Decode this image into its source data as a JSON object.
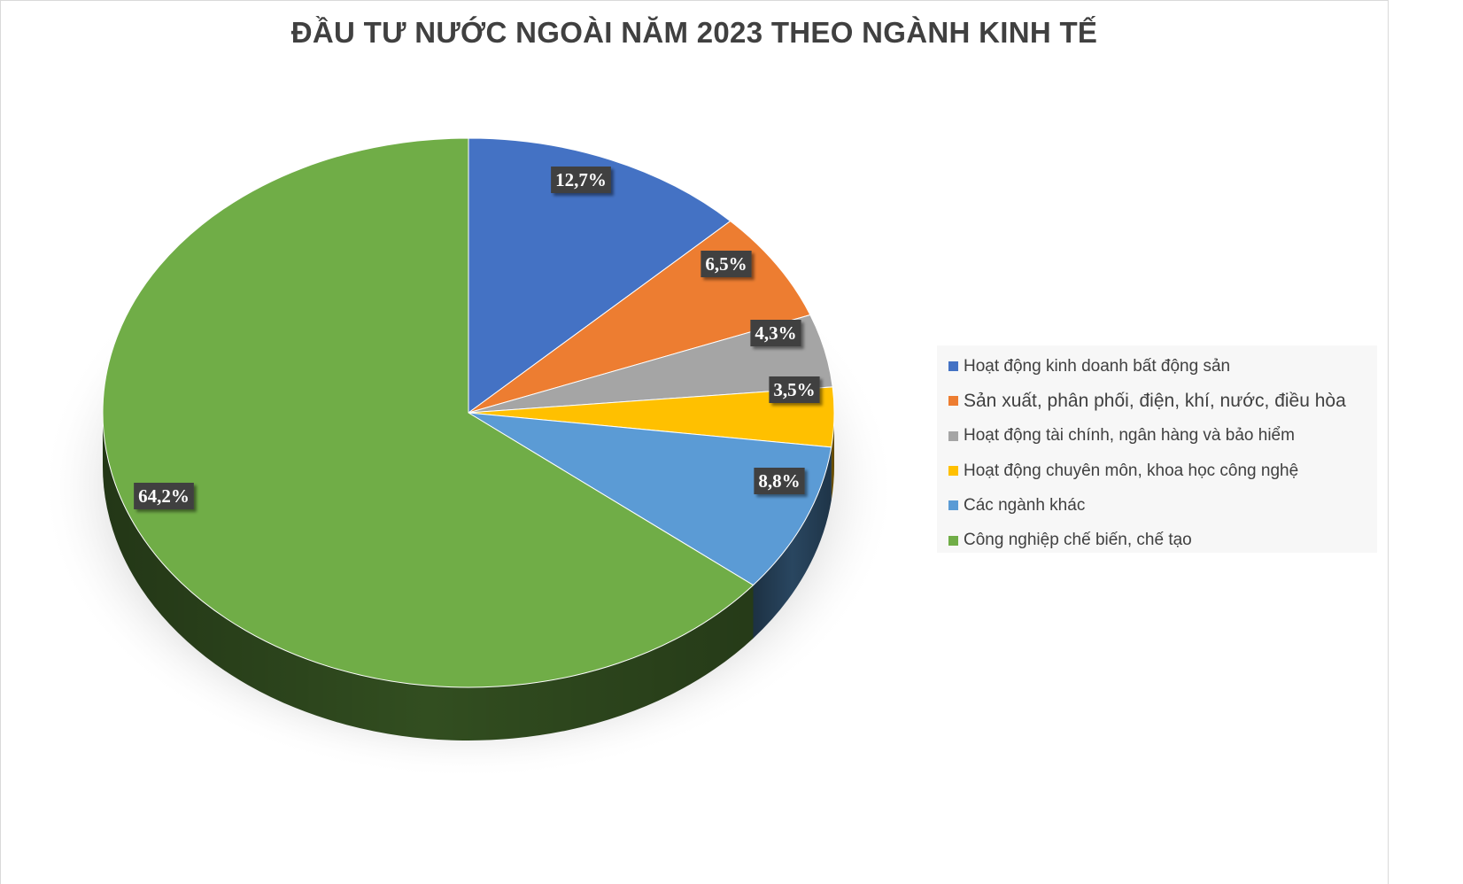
{
  "chart_data": {
    "type": "pie",
    "title": "ĐẦU TƯ NƯỚC NGOÀI NĂM 2023 THEO NGÀNH KINH TẾ",
    "style": "3d-pie",
    "legend_position": "right",
    "slices": [
      {
        "name": "Hoạt động kinh doanh bất động sản",
        "value": 12.7,
        "label": "12,7%",
        "color": "#4472c4"
      },
      {
        "name": "Sản xuất, phân phối, điện, khí, nước, điều hòa",
        "value": 6.5,
        "label": "6,5%",
        "color": "#ed7d31"
      },
      {
        "name": "Hoạt động tài chính, ngân hàng và bảo hiểm",
        "value": 4.3,
        "label": "4,3%",
        "color": "#a5a5a5"
      },
      {
        "name": "Hoạt động chuyên môn, khoa học công nghệ",
        "value": 3.5,
        "label": "3,5%",
        "color": "#ffc000"
      },
      {
        "name": "Các ngành khác",
        "value": 8.8,
        "label": "8,8%",
        "color": "#5b9bd5"
      },
      {
        "name": "Công nghiệp chế biến, chế tạo",
        "value": 64.2,
        "label": "64,2%",
        "color": "#70ad47"
      }
    ]
  }
}
